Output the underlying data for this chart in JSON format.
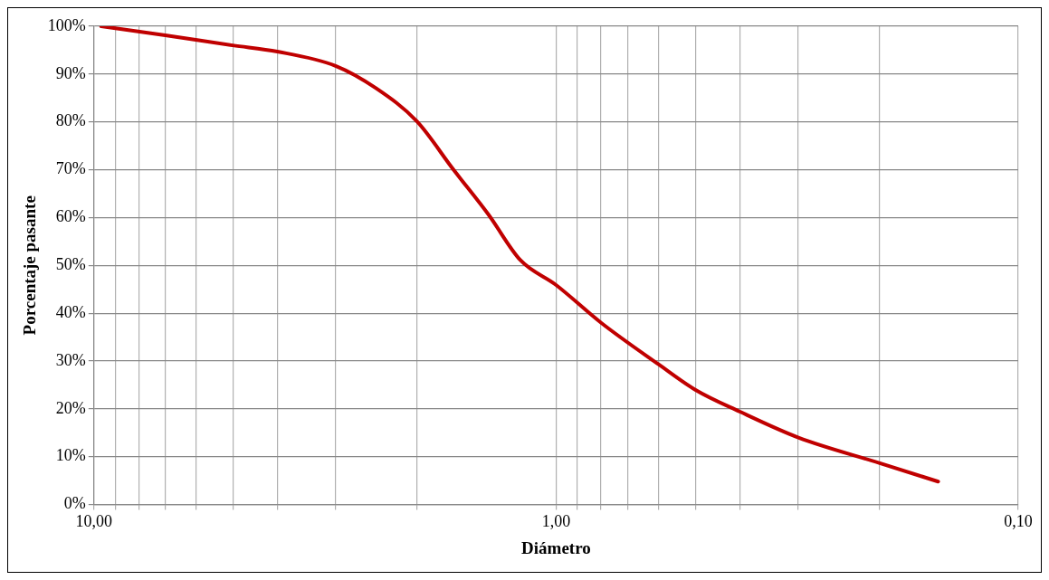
{
  "chart_data": {
    "type": "line",
    "xlabel": "Diámetro",
    "ylabel": "Porcentaje pasante",
    "log": "x",
    "xlim": [
      10,
      0.1
    ],
    "xticks": [
      {
        "value": 10,
        "label": "10,00"
      },
      {
        "value": 9,
        "label": null
      },
      {
        "value": 8,
        "label": null
      },
      {
        "value": 7,
        "label": null
      },
      {
        "value": 6,
        "label": null
      },
      {
        "value": 5,
        "label": null
      },
      {
        "value": 4,
        "label": null
      },
      {
        "value": 3,
        "label": null
      },
      {
        "value": 2,
        "label": null
      },
      {
        "value": 1,
        "label": "1,00"
      },
      {
        "value": 0.9,
        "label": null
      },
      {
        "value": 0.8,
        "label": null
      },
      {
        "value": 0.7,
        "label": null
      },
      {
        "value": 0.6,
        "label": null
      },
      {
        "value": 0.5,
        "label": null
      },
      {
        "value": 0.4,
        "label": null
      },
      {
        "value": 0.3,
        "label": null
      },
      {
        "value": 0.2,
        "label": null
      },
      {
        "value": 0.1,
        "label": "0,10"
      }
    ],
    "ylim": [
      0,
      100
    ],
    "yticks": [
      {
        "value": 0,
        "label": "0%"
      },
      {
        "value": 10,
        "label": "10%"
      },
      {
        "value": 20,
        "label": "20%"
      },
      {
        "value": 30,
        "label": "30%"
      },
      {
        "value": 40,
        "label": "40%"
      },
      {
        "value": 50,
        "label": "50%"
      },
      {
        "value": 60,
        "label": "60%"
      },
      {
        "value": 70,
        "label": "70%"
      },
      {
        "value": 80,
        "label": "80%"
      },
      {
        "value": 90,
        "label": "90%"
      },
      {
        "value": 100,
        "label": "100%"
      }
    ],
    "grid": true,
    "legend": false,
    "marker": "none",
    "line_style": "solid",
    "series": [
      {
        "color": "#c00000",
        "x": [
          9.65,
          7.01,
          5.01,
          4.01,
          3.0,
          2.45,
          2.0,
          1.67,
          1.4,
          1.195,
          1.0,
          0.799,
          0.6,
          0.5,
          0.4,
          0.299,
          0.2,
          0.149
        ],
        "values": [
          100,
          98.1,
          96,
          94.7,
          91.7,
          87,
          80.1,
          70.1,
          60.6,
          51.1,
          45.9,
          38,
          29.3,
          24,
          19.4,
          14,
          8.7,
          4.8
        ]
      }
    ]
  }
}
